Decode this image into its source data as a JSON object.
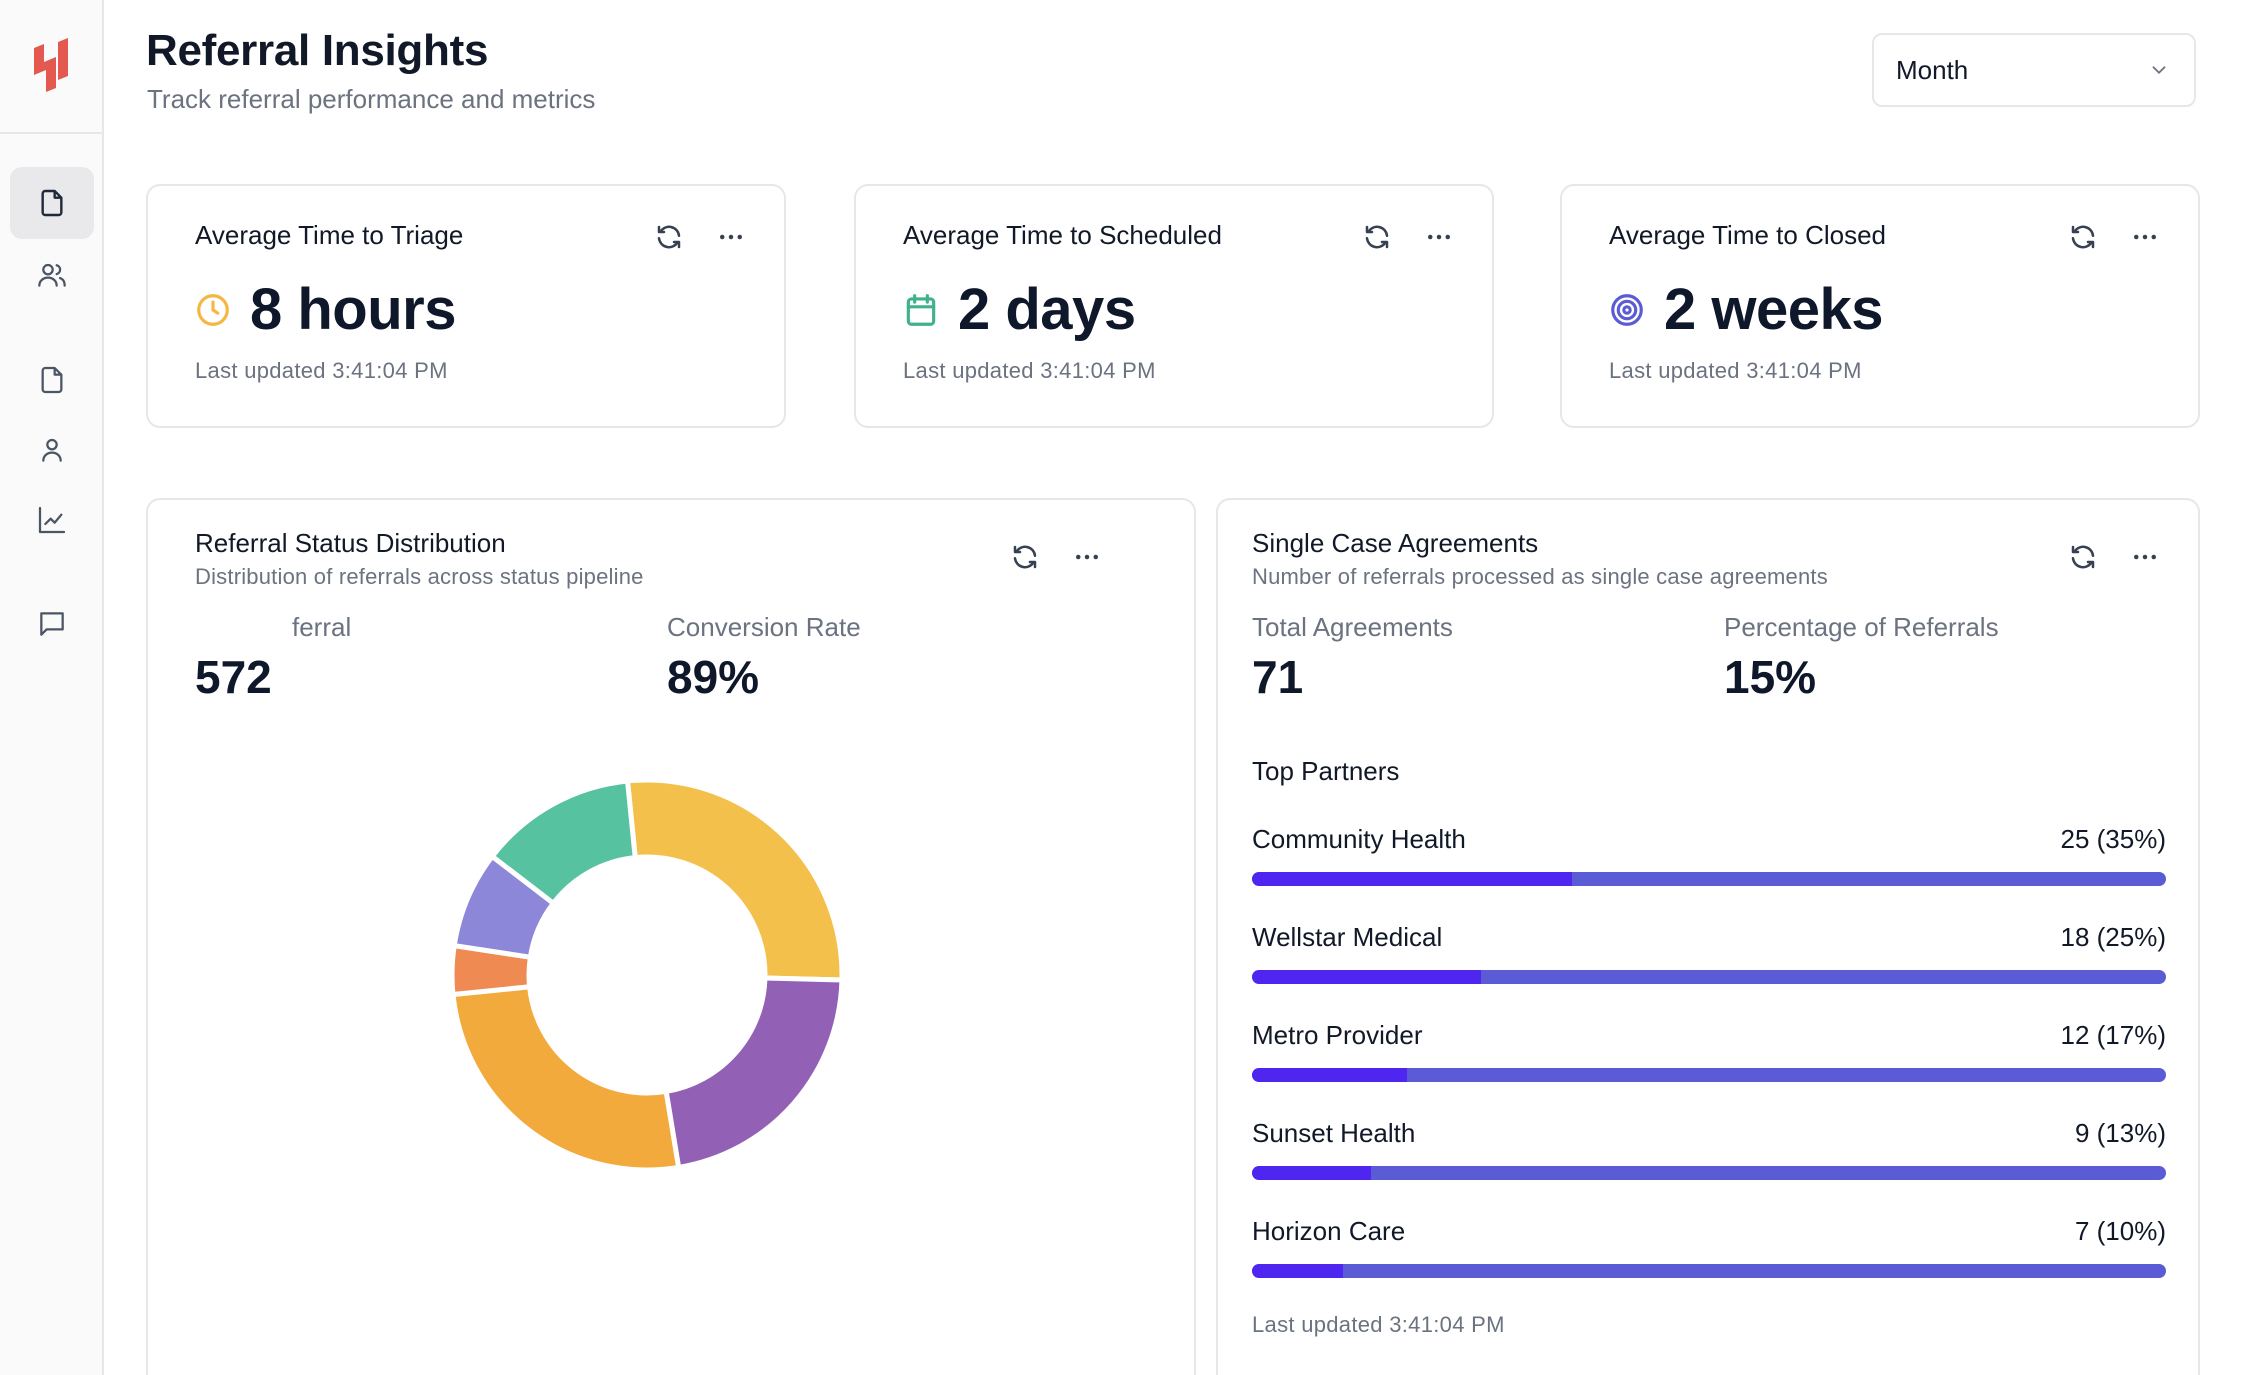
{
  "header": {
    "title": "Referral Insights",
    "subtitle": "Track referral performance and metrics",
    "period_select": {
      "value": "Month"
    }
  },
  "sidebar": {
    "items": [
      {
        "icon": "file-icon",
        "active": true
      },
      {
        "icon": "users-icon",
        "active": false
      },
      {
        "icon": "file-icon",
        "active": false
      },
      {
        "icon": "user-icon",
        "active": false
      },
      {
        "icon": "chart-line-icon",
        "active": false
      },
      {
        "icon": "message-icon",
        "active": false
      }
    ]
  },
  "kpis": [
    {
      "title": "Average Time to Triage",
      "value": "8 hours",
      "icon": "clock-icon",
      "icon_color": "#f5b642",
      "updated": "Last updated 3:41:04 PM"
    },
    {
      "title": "Average Time to Scheduled",
      "value": "2 days",
      "icon": "calendar-icon",
      "icon_color": "#3fb18d",
      "updated": "Last updated 3:41:04 PM"
    },
    {
      "title": "Average Time to Closed",
      "value": "2 weeks",
      "icon": "target-icon",
      "icon_color": "#5b5bd6",
      "updated": "Last updated 3:41:04 PM"
    }
  ],
  "status_distribution": {
    "title": "Referral Status Distribution",
    "subtitle": "Distribution of referrals across status pipeline",
    "metrics": [
      {
        "label": "ferral",
        "value": "572"
      },
      {
        "label": "Conversion Rate",
        "value": "89%"
      }
    ]
  },
  "chart_data": {
    "type": "pie",
    "donut": true,
    "values": [
      27,
      22,
      26,
      4,
      8,
      13
    ],
    "colors": [
      "#f4c04c",
      "#9261b5",
      "#f2aa3c",
      "#ef8a52",
      "#8c87d8",
      "#57c2a0"
    ]
  },
  "single_case": {
    "title": "Single Case Agreements",
    "subtitle": "Number of referrals processed as single case agreements",
    "metrics": [
      {
        "label": "Total Agreements",
        "value": "71"
      },
      {
        "label": "Percentage of Referrals",
        "value": "15%"
      }
    ],
    "partners_heading": "Top Partners",
    "partners": [
      {
        "name": "Community Health",
        "value": "25 (35%)",
        "share": 0.35
      },
      {
        "name": "Wellstar Medical",
        "value": "18 (25%)",
        "share": 0.25
      },
      {
        "name": "Metro Provider",
        "value": "12 (17%)",
        "share": 0.17
      },
      {
        "name": "Sunset Health",
        "value": "9 (13%)",
        "share": 0.13
      },
      {
        "name": "Horizon Care",
        "value": "7 (10%)",
        "share": 0.1
      }
    ],
    "updated": "Last updated 3:41:04 PM"
  },
  "colors": {
    "brand": "#e4594f",
    "bar_fill": "#4f25f0",
    "bar_track": "#5b5bd6"
  }
}
